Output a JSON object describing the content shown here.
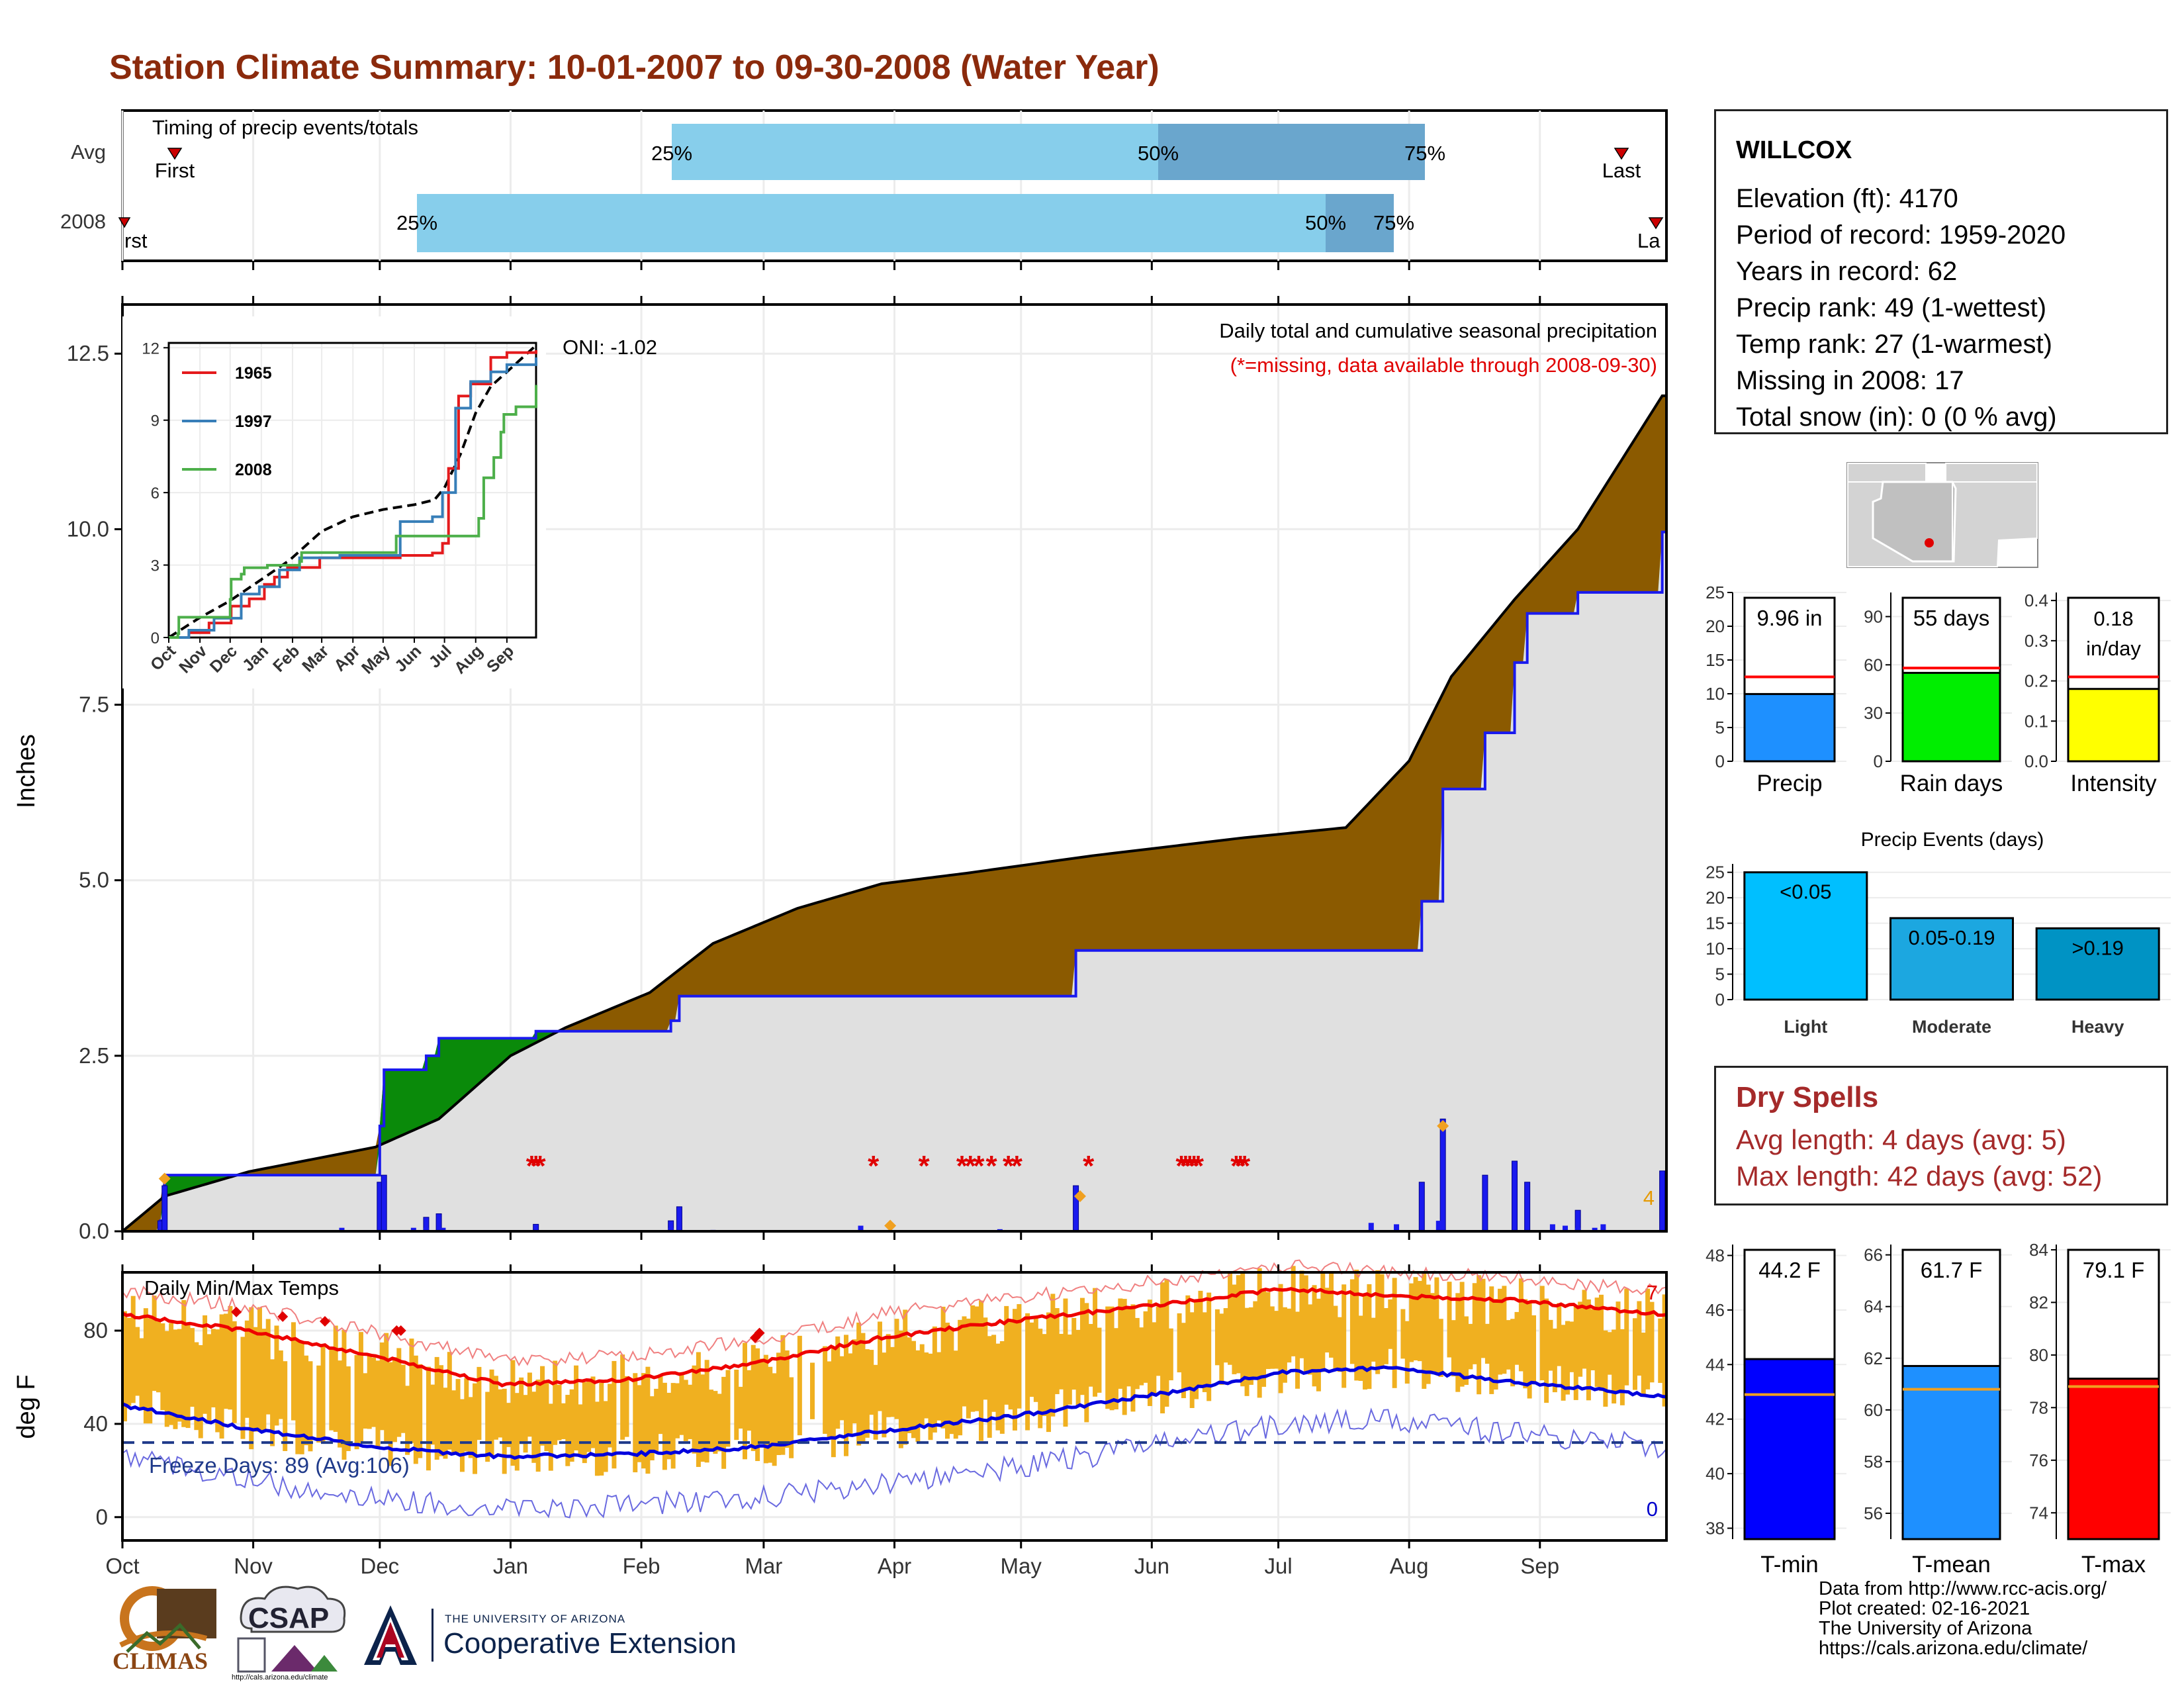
{
  "title": "Station Climate Summary: 10-01-2007 to 09-30-2008 (Water Year)",
  "timing_panel": {
    "title": "Timing of precip events/totals",
    "rows": [
      "Avg",
      "2008"
    ],
    "avg": {
      "first": "First",
      "last": "Last",
      "p25": "25%",
      "p50": "50%",
      "p75": "75%"
    },
    "y2008": {
      "first": "rst",
      "last": "La",
      "p25": "25%",
      "p50": "50%",
      "p75": "75%"
    }
  },
  "precip_panel": {
    "ylabel": "Inches",
    "yticks": [
      "0.0",
      "2.5",
      "5.0",
      "7.5",
      "10.0",
      "12.5"
    ],
    "oni": "ONI: -1.02",
    "legend_title": "Daily total and cumulative seasonal precipitation",
    "missing_note": "(*=missing, data available through 2008-09-30)",
    "corner_count": "4"
  },
  "inset": {
    "yticks": [
      "0",
      "3",
      "6",
      "9",
      "12"
    ],
    "xticks": [
      "Oct",
      "Nov",
      "Dec",
      "Jan",
      "Feb",
      "Mar",
      "Apr",
      "May",
      "Jun",
      "Jul",
      "Aug",
      "Sep"
    ],
    "series": [
      {
        "name": "1965",
        "color": "#e41a1c"
      },
      {
        "name": "1997",
        "color": "#377eb8"
      },
      {
        "name": "2008",
        "color": "#4daf4a"
      }
    ]
  },
  "temp_panel": {
    "ylabel": "deg F",
    "title": "Daily Min/Max Temps",
    "yticks": [
      "0",
      "40",
      "80"
    ],
    "freeze": "Freeze Days: 89 (Avg:106)",
    "count_hi": "7",
    "count_lo": "0"
  },
  "xticks": [
    "Oct",
    "Nov",
    "Dec",
    "Jan",
    "Feb",
    "Mar",
    "Apr",
    "May",
    "Jun",
    "Jul",
    "Aug",
    "Sep"
  ],
  "station": {
    "name": "WILLCOX",
    "lines": [
      "Elevation (ft): 4170",
      "Period of record: 1959-2020",
      "Years in record: 62",
      "Precip rank: 49 (1-wettest)",
      "Temp rank: 27 (1-warmest)",
      "Missing in 2008: 17",
      "Total snow (in): 0 (0 % avg)"
    ]
  },
  "bars": {
    "precip": {
      "label": "Precip",
      "value_text": "9.96 in",
      "yticks": [
        "0",
        "5",
        "10",
        "15",
        "20",
        "25"
      ],
      "color": "#1e90ff"
    },
    "raindays": {
      "label": "Rain days",
      "value_text": "55 days",
      "yticks": [
        "0",
        "30",
        "60",
        "90"
      ],
      "color": "#00ee00"
    },
    "intensity": {
      "label": "Intensity",
      "value_text1": "0.18",
      "value_text2": "in/day",
      "yticks": [
        "0.0",
        "0.1",
        "0.2",
        "0.3",
        "0.4"
      ],
      "color": "#ffff00"
    }
  },
  "events": {
    "title": "Precip Events (days)",
    "yticks": [
      "0",
      "5",
      "10",
      "15",
      "20",
      "25"
    ],
    "categories": [
      "Light",
      "Moderate",
      "Heavy"
    ],
    "bar_labels": [
      "<0.05",
      "0.05-0.19",
      ">0.19"
    ],
    "colors": [
      "#00bfff",
      "#1ca7e0",
      "#0093c4"
    ]
  },
  "dry_spells": {
    "title": "Dry Spells",
    "avg": "Avg length: 4 days (avg: 5)",
    "max": "Max length: 42 days (avg: 52)"
  },
  "temp_bars": {
    "tmin": {
      "label": "T-min",
      "value_text": "44.2 F",
      "yticks": [
        "38",
        "40",
        "42",
        "44",
        "46",
        "48"
      ],
      "color": "#0000ff"
    },
    "tmean": {
      "label": "T-mean",
      "value_text": "61.7 F",
      "yticks": [
        "56",
        "58",
        "60",
        "62",
        "64",
        "66"
      ],
      "color": "#1e90ff"
    },
    "tmax": {
      "label": "T-max",
      "value_text": "79.1 F",
      "yticks": [
        "74",
        "76",
        "78",
        "80",
        "82",
        "84"
      ],
      "color": "#ff0000"
    }
  },
  "credits": [
    "Data from http://www.rcc-acis.org/",
    "Plot created: 02-16-2021",
    "The University of Arizona",
    "https://cals.arizona.edu/climate/"
  ],
  "logos": {
    "climas": "CLIMAS",
    "csap": "CSAP",
    "csap_url": "http://cals.arizona.edu/climate",
    "ua_small": "THE UNIVERSITY OF ARIZONA",
    "ua_big": "Cooperative Extension",
    "ua_mark": "A"
  },
  "chart_data": [
    {
      "type": "area",
      "title": "Daily total and cumulative seasonal precipitation",
      "ylabel": "Inches",
      "ylim": [
        0,
        13.2
      ],
      "x_months": [
        "Oct",
        "Nov",
        "Dec",
        "Jan",
        "Feb",
        "Mar",
        "Apr",
        "May",
        "Jun",
        "Jul",
        "Aug",
        "Sep"
      ],
      "series": [
        {
          "name": "avg",
          "points": [
            [
              0,
              0
            ],
            [
              10,
              0.5
            ],
            [
              30,
              0.85
            ],
            [
              60,
              1.2
            ],
            [
              75,
              1.6
            ],
            [
              92,
              2.5
            ],
            [
              105,
              2.9
            ],
            [
              125,
              3.4
            ],
            [
              140,
              4.1
            ],
            [
              160,
              4.6
            ],
            [
              180,
              4.95
            ],
            [
              200,
              5.1
            ],
            [
              230,
              5.35
            ],
            [
              265,
              5.6
            ],
            [
              290,
              5.75
            ],
            [
              305,
              6.7
            ],
            [
              315,
              7.9
            ],
            [
              330,
              9.0
            ],
            [
              345,
              10.0
            ],
            [
              365,
              11.9
            ]
          ]
        },
        {
          "name": "2008",
          "points": [
            [
              0,
              0
            ],
            [
              9,
              0.15
            ],
            [
              10,
              0.8
            ],
            [
              60,
              0.8
            ],
            [
              61,
              1.5
            ],
            [
              62,
              2.3
            ],
            [
              72,
              2.5
            ],
            [
              75,
              2.75
            ],
            [
              97,
              2.75
            ],
            [
              98,
              2.85
            ],
            [
              130,
              3.0
            ],
            [
              132,
              3.35
            ],
            [
              225,
              3.35
            ],
            [
              226,
              4.0
            ],
            [
              307,
              4.0
            ],
            [
              308,
              4.7
            ],
            [
              313,
              6.3
            ],
            [
              323,
              7.1
            ],
            [
              330,
              8.1
            ],
            [
              333,
              8.8
            ],
            [
              345,
              9.1
            ],
            [
              365,
              9.96
            ]
          ]
        }
      ],
      "oni": -1.02
    },
    {
      "type": "line",
      "title": "Daily Min/Max Temps",
      "ylabel": "deg F",
      "ylim": [
        -10,
        105
      ],
      "freeze_line": 32,
      "series": [
        {
          "name": "avg max",
          "points": [
            [
              0,
              87
            ],
            [
              30,
              80
            ],
            [
              60,
              69
            ],
            [
              90,
              57
            ],
            [
              120,
              59
            ],
            [
              150,
              66
            ],
            [
              180,
              77
            ],
            [
              210,
              84
            ],
            [
              250,
              92
            ],
            [
              275,
              98
            ],
            [
              300,
              95
            ],
            [
              330,
              93
            ],
            [
              365,
              87
            ]
          ]
        },
        {
          "name": "avg min",
          "points": [
            [
              0,
              48
            ],
            [
              30,
              38
            ],
            [
              60,
              30
            ],
            [
              90,
              26
            ],
            [
              120,
              27
            ],
            [
              150,
              30
            ],
            [
              180,
              37
            ],
            [
              210,
              43
            ],
            [
              250,
              54
            ],
            [
              275,
              62
            ],
            [
              300,
              64
            ],
            [
              330,
              58
            ],
            [
              365,
              52
            ]
          ]
        }
      ]
    },
    {
      "type": "bar",
      "title": "Precip",
      "categories": [
        "Precip"
      ],
      "values": [
        9.96
      ],
      "avg": 12.5,
      "ylim": [
        0,
        25
      ]
    },
    {
      "type": "bar",
      "title": "Rain days",
      "categories": [
        "Rain days"
      ],
      "values": [
        55
      ],
      "avg": 58,
      "ylim": [
        0,
        105
      ]
    },
    {
      "type": "bar",
      "title": "Intensity",
      "categories": [
        "Intensity"
      ],
      "values": [
        0.18
      ],
      "avg": 0.21,
      "ylim": [
        0,
        0.42
      ]
    },
    {
      "type": "bar",
      "title": "Precip Events (days)",
      "categories": [
        "Light",
        "Moderate",
        "Heavy"
      ],
      "values": [
        25,
        16,
        14
      ],
      "ylim": [
        0,
        26
      ]
    },
    {
      "type": "bar",
      "title": "T-min",
      "categories": [
        "T-min"
      ],
      "values": [
        44.2
      ],
      "avg": 42.9,
      "ylim": [
        37.6,
        48.4
      ]
    },
    {
      "type": "bar",
      "title": "T-mean",
      "categories": [
        "T-mean"
      ],
      "values": [
        61.7
      ],
      "avg": 60.8,
      "ylim": [
        55.0,
        66.4
      ]
    },
    {
      "type": "bar",
      "title": "T-max",
      "categories": [
        "T-max"
      ],
      "values": [
        79.1
      ],
      "avg": 78.8,
      "ylim": [
        73.0,
        84.2
      ]
    }
  ]
}
